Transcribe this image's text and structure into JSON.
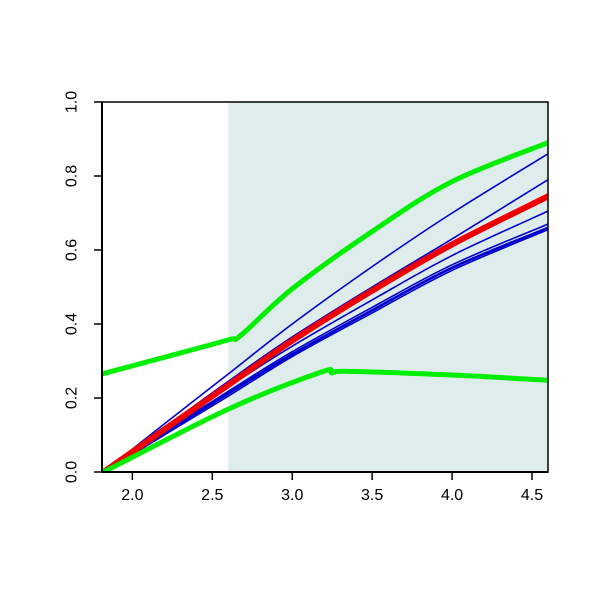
{
  "chart_data": {
    "type": "line",
    "title": "",
    "xlabel": "",
    "ylabel": "",
    "xlim": [
      1.81,
      4.6
    ],
    "ylim": [
      0.0,
      1.0
    ],
    "x_ticks": [
      2.0,
      2.5,
      3.0,
      3.5,
      4.0,
      4.5
    ],
    "x_tick_labels": [
      "2.0",
      "2.5",
      "3.0",
      "3.5",
      "4.0",
      "4.5"
    ],
    "y_ticks": [
      0.0,
      0.2,
      0.4,
      0.6,
      0.8,
      1.0
    ],
    "y_tick_labels": [
      "0.0",
      "0.2",
      "0.4",
      "0.6",
      "0.8",
      "1.0"
    ],
    "grid": false,
    "legend": "none",
    "shaded_region": {
      "x_from": 2.6,
      "x_to": 4.6,
      "color": "#deeceb"
    },
    "series": [
      {
        "color": "#0000cc",
        "role": "curve",
        "width": 1.6,
        "x": [
          1.82,
          2.2,
          2.6,
          3.0,
          3.5,
          4.0,
          4.6
        ],
        "y": [
          0.0,
          0.13,
          0.265,
          0.4,
          0.555,
          0.7,
          0.86
        ]
      },
      {
        "color": "#0000cc",
        "role": "curve",
        "width": 1.6,
        "x": [
          1.82,
          2.2,
          2.6,
          3.0,
          3.5,
          4.0,
          4.6
        ],
        "y": [
          0.0,
          0.12,
          0.245,
          0.365,
          0.5,
          0.63,
          0.79
        ]
      },
      {
        "color": "#0000cc",
        "role": "curve",
        "width": 1.6,
        "x": [
          1.82,
          2.2,
          2.6,
          3.0,
          3.5,
          4.0,
          4.6
        ],
        "y": [
          0.0,
          0.112,
          0.23,
          0.34,
          0.465,
          0.585,
          0.705
        ]
      },
      {
        "color": "#0000cc",
        "role": "curve",
        "width": 1.6,
        "x": [
          1.82,
          2.2,
          2.6,
          3.0,
          3.5,
          4.0,
          4.6
        ],
        "y": [
          0.0,
          0.108,
          0.218,
          0.325,
          0.445,
          0.56,
          0.67
        ]
      },
      {
        "color": "#0000cc",
        "role": "curve",
        "width": 2.6,
        "x": [
          1.82,
          2.2,
          2.6,
          3.0,
          3.5,
          4.0,
          4.6
        ],
        "y": [
          0.0,
          0.105,
          0.212,
          0.318,
          0.437,
          0.552,
          0.66
        ]
      },
      {
        "color": "#0000cc",
        "role": "curve",
        "width": 1.6,
        "x": [
          1.82,
          2.2,
          2.6,
          3.0,
          3.5,
          4.0,
          4.6
        ],
        "y": [
          0.0,
          0.1,
          0.205,
          0.312,
          0.43,
          0.545,
          0.655
        ]
      },
      {
        "color": "#ee0000",
        "role": "mean",
        "width": 6,
        "x": [
          1.82,
          2.2,
          2.6,
          3.0,
          3.5,
          4.0,
          4.6
        ],
        "y": [
          0.0,
          0.115,
          0.235,
          0.355,
          0.49,
          0.615,
          0.745
        ]
      },
      {
        "color": "#00ee00",
        "role": "upper-bound",
        "width": 5,
        "x": [
          1.81,
          2.2,
          2.6,
          2.68,
          3.0,
          3.5,
          4.0,
          4.6
        ],
        "y": [
          0.265,
          0.31,
          0.357,
          0.37,
          0.495,
          0.65,
          0.785,
          0.89
        ]
      },
      {
        "color": "#00ee00",
        "role": "lower-bound",
        "width": 5,
        "x": [
          1.82,
          2.6,
          3.18,
          3.25,
          3.35,
          4.0,
          4.6
        ],
        "y": [
          0.0,
          0.17,
          0.27,
          0.268,
          0.272,
          0.262,
          0.248
        ]
      }
    ]
  }
}
